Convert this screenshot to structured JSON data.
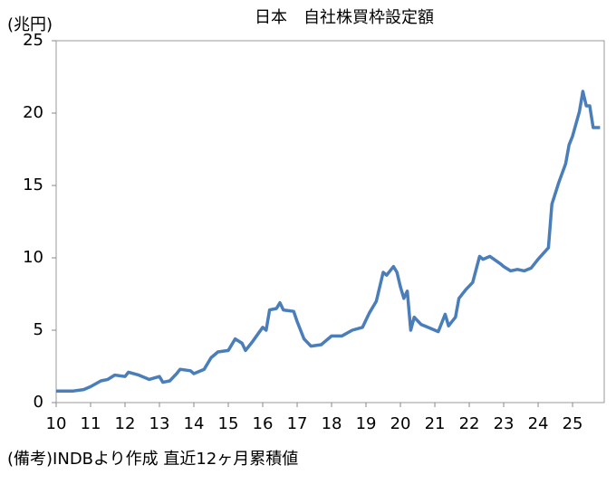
{
  "chart_data": {
    "type": "line",
    "title": "日本　自社株買枠設定額",
    "y_label": "(兆円)",
    "note": "(備考)INDBより作成 直近12ヶ月累積値",
    "x": [
      10.0,
      10.5,
      10.8,
      11.0,
      11.3,
      11.5,
      11.7,
      12.0,
      12.1,
      12.4,
      12.7,
      13.0,
      13.1,
      13.3,
      13.5,
      13.6,
      13.9,
      14.0,
      14.3,
      14.5,
      14.7,
      15.0,
      15.2,
      15.4,
      15.5,
      15.7,
      16.0,
      16.1,
      16.2,
      16.4,
      16.5,
      16.6,
      16.9,
      17.0,
      17.2,
      17.4,
      17.7,
      18.0,
      18.3,
      18.6,
      18.9,
      19.1,
      19.3,
      19.5,
      19.6,
      19.8,
      19.9,
      20.0,
      20.1,
      20.2,
      20.3,
      20.4,
      20.6,
      20.8,
      21.0,
      21.1,
      21.3,
      21.4,
      21.6,
      21.7,
      21.9,
      22.1,
      22.3,
      22.4,
      22.6,
      22.9,
      23.0,
      23.2,
      23.4,
      23.6,
      23.8,
      24.0,
      24.3,
      24.4,
      24.6,
      24.8,
      24.9,
      25.0,
      25.2,
      25.3,
      25.4,
      25.5,
      25.6,
      25.8
    ],
    "series": [
      {
        "name": "自社株買枠設定額",
        "color": "#4a7ebb",
        "values": [
          0.8,
          0.8,
          0.9,
          1.1,
          1.5,
          1.6,
          1.9,
          1.8,
          2.1,
          1.9,
          1.6,
          1.8,
          1.4,
          1.5,
          2.0,
          2.3,
          2.2,
          2.0,
          2.3,
          3.1,
          3.5,
          3.6,
          4.4,
          4.1,
          3.6,
          4.2,
          5.2,
          5.0,
          6.4,
          6.5,
          6.9,
          6.4,
          6.3,
          5.6,
          4.4,
          3.9,
          4.0,
          4.6,
          4.6,
          5.0,
          5.2,
          6.2,
          7.0,
          9.0,
          8.8,
          9.4,
          9.0,
          8.0,
          7.2,
          7.7,
          5.0,
          5.9,
          5.4,
          5.2,
          5.0,
          4.9,
          6.1,
          5.3,
          5.9,
          7.2,
          7.8,
          8.3,
          10.1,
          9.9,
          10.1,
          9.6,
          9.4,
          9.1,
          9.2,
          9.1,
          9.3,
          9.9,
          10.7,
          13.7,
          15.2,
          16.5,
          17.8,
          18.4,
          20.1,
          21.5,
          20.5,
          20.5,
          19.0,
          19.0
        ]
      }
    ],
    "xlim": [
      10,
      25.92
    ],
    "xticks": [
      10,
      11,
      12,
      13,
      14,
      15,
      16,
      17,
      18,
      19,
      20,
      21,
      22,
      23,
      24,
      25
    ],
    "ylim": [
      0,
      25
    ],
    "yticks": [
      0,
      5,
      10,
      15,
      20,
      25
    ],
    "grid": false
  }
}
